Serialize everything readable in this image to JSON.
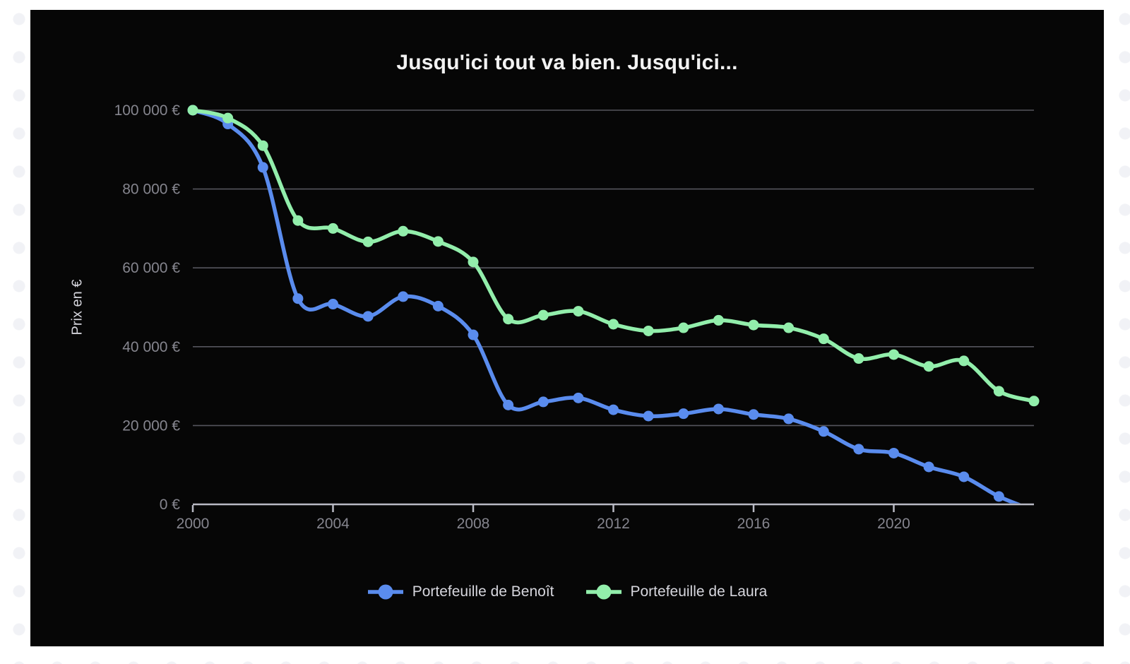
{
  "page": {
    "background_color": "#ffffff",
    "dot_pattern_color": "#f1f2f6"
  },
  "chart": {
    "background_color": "#060606",
    "title": "Jusqu'ici tout va bien. Jusqu'ici...",
    "y_axis_title": "Prix en €",
    "y_tick_labels": [
      "0 €",
      "20 000 €",
      "40 000 €",
      "60 000 €",
      "80 000 €",
      "100 000 €"
    ],
    "x_tick_labels": [
      "2000",
      "2004",
      "2008",
      "2012",
      "2016",
      "2020"
    ],
    "grid_color": "#55555d",
    "axis_color": "#b9bac4",
    "tick_label_color": "#85858e",
    "legend_text_color": "#d6d6dd",
    "title_color": "#f2f2f2"
  },
  "chart_data": {
    "type": "line",
    "title": "Jusqu'ici tout va bien. Jusqu'ici...",
    "xlabel": "",
    "ylabel": "Prix en €",
    "x": [
      2000,
      2001,
      2002,
      2003,
      2004,
      2005,
      2006,
      2007,
      2008,
      2009,
      2010,
      2011,
      2012,
      2013,
      2014,
      2015,
      2016,
      2017,
      2018,
      2019,
      2020,
      2021,
      2022,
      2023,
      2024
    ],
    "xlim": [
      2000,
      2024
    ],
    "ylim": [
      0,
      100000
    ],
    "yticks": [
      0,
      20000,
      40000,
      60000,
      80000,
      100000
    ],
    "xticks": [
      2000,
      2004,
      2008,
      2012,
      2016,
      2020
    ],
    "grid": true,
    "smooth": true,
    "marker": "circle",
    "legend_position": "bottom",
    "series": [
      {
        "name": "Portefeuille de Benoît",
        "color": "#5a8cee",
        "values": [
          100000,
          96500,
          85500,
          52200,
          50800,
          47700,
          52700,
          50300,
          43000,
          25200,
          26000,
          27000,
          24000,
          22400,
          23000,
          24200,
          22800,
          21700,
          18500,
          14000,
          13000,
          9500,
          7000,
          2000,
          -1500
        ]
      },
      {
        "name": "Portefeuille de Laura",
        "color": "#92eeab",
        "values": [
          100000,
          98000,
          91000,
          72000,
          70000,
          66600,
          69300,
          66700,
          61500,
          47000,
          48000,
          49000,
          45700,
          44000,
          44800,
          46700,
          45500,
          44800,
          42000,
          37000,
          38000,
          35000,
          36400,
          28700,
          26200
        ]
      }
    ]
  }
}
